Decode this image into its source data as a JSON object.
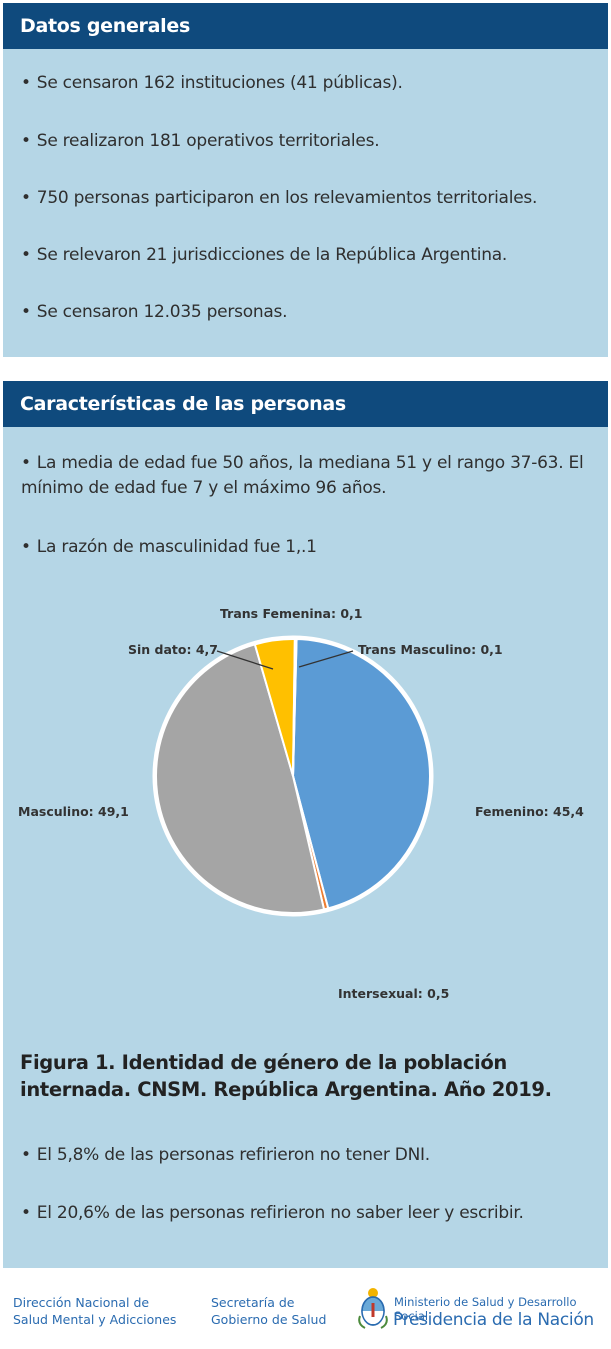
{
  "panel1": {
    "title": "Datos generales",
    "bullets": [
      "Se censaron 162 instituciones (41 públicas).",
      "Se realizaron 181 operativos territoriales.",
      "750 personas participaron en los relevamientos territoriales.",
      "Se relevaron 21 jurisdicciones de la República Argentina.",
      "Se censaron 12.035 personas."
    ]
  },
  "panel2": {
    "title": "Características de las personas",
    "bullets_top": [
      "La media de edad fue 50 años, la mediana 51 y el rango 37-63. El mínimo de edad fue 7 y el máximo 96 años.",
      "La razón de masculinidad fue 1,.1"
    ],
    "figure_caption": "Figura 1. Identidad de género de la población internada. CNSM. República Argentina. Año 2019.",
    "bullets_bottom": [
      "El 5,8% de las personas refirieron no tener DNI.",
      "El 20,6% de las personas refirieron no saber leer y escribir."
    ]
  },
  "bullet_symbol": "•",
  "chart_data": {
    "type": "pie",
    "title": "",
    "slices": [
      {
        "name": "Femenino",
        "value": 45.4,
        "label": "Femenino: 45,4",
        "color": "#5b9bd5"
      },
      {
        "name": "Intersexual",
        "value": 0.5,
        "label": "Intersexual: 0,5",
        "color": "#ed7d31"
      },
      {
        "name": "Masculino",
        "value": 49.1,
        "label": "Masculino: 49,1",
        "color": "#a5a5a5"
      },
      {
        "name": "Sin dato",
        "value": 4.7,
        "label": "Sin dato: 4,7",
        "color": "#ffc000"
      },
      {
        "name": "Trans Femenina",
        "value": 0.1,
        "label": "Trans Femenina: 0,1",
        "color": "#4472c4"
      },
      {
        "name": "Trans Masculino",
        "value": 0.1,
        "label": "Trans Masculino: 0,1",
        "color": "#70ad47"
      }
    ],
    "legend": "none"
  },
  "footer": {
    "org1_line1": "Dirección Nacional de",
    "org1_line2": "Salud Mental y Adicciones",
    "org2_line1": "Secretaría de",
    "org2_line2": "Gobierno de Salud",
    "ministry": "Ministerio de Salud y Desarrollo Social",
    "presidency": "Presidencia de la Nación",
    "emblem_icon": "argentina-coat-of-arms-icon"
  },
  "colors": {
    "header_bg": "#0f4a7d",
    "panel_bg": "#b5d6e6",
    "footer_text": "#2a6bb0"
  }
}
